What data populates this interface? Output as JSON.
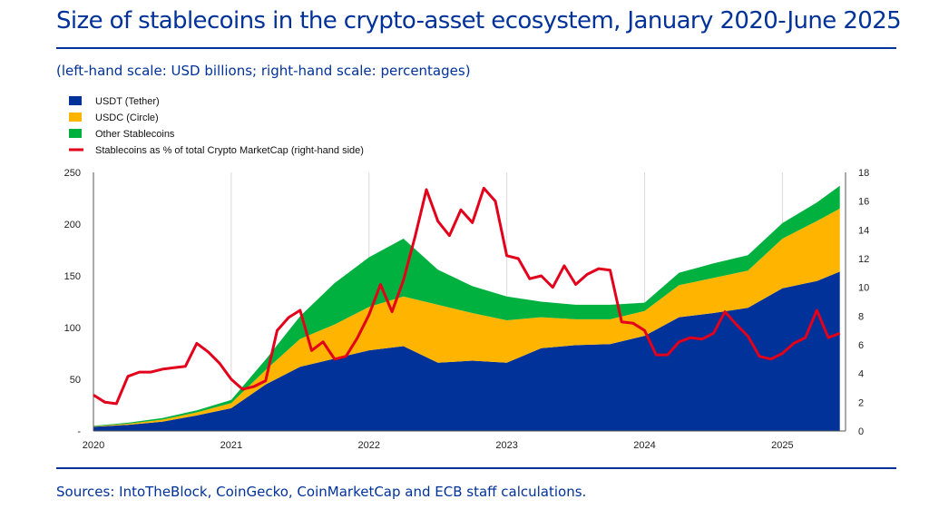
{
  "header": {
    "title": "Size of stablecoins in the crypto-asset ecosystem, January 2020-June 2025",
    "subtitle": "(left-hand scale: USD billions; right-hand scale: percentages)"
  },
  "footer": {
    "sources": "Sources: IntoTheBlock, CoinGecko, CoinMarketCap and ECB staff calculations."
  },
  "chart_data": {
    "type": "area",
    "title": "Size of stablecoins in the crypto-asset ecosystem, January 2020-June 2025",
    "x": [
      "2020-01",
      "2020-04",
      "2020-07",
      "2020-10",
      "2021-01",
      "2021-04",
      "2021-07",
      "2021-10",
      "2022-01",
      "2022-04",
      "2022-07",
      "2022-10",
      "2023-01",
      "2023-04",
      "2023-07",
      "2023-10",
      "2024-01",
      "2024-04",
      "2024-07",
      "2024-10",
      "2025-01",
      "2025-04",
      "2025-06"
    ],
    "x_ticks": [
      "2020",
      "2021",
      "2022",
      "2023",
      "2024",
      "2025"
    ],
    "ylim_left": [
      0,
      250
    ],
    "yticks_left": [
      "-",
      "50",
      "100",
      "150",
      "200",
      "250"
    ],
    "ylim_right": [
      0,
      18
    ],
    "yticks_right": [
      "0",
      "2",
      "4",
      "6",
      "8",
      "10",
      "12",
      "14",
      "16",
      "18"
    ],
    "stack_series": [
      {
        "name": "USDT (Tether)",
        "color": "#003299",
        "values": [
          4,
          6,
          9,
          15,
          22,
          45,
          62,
          70,
          78,
          82,
          66,
          68,
          66,
          80,
          83,
          84,
          92,
          110,
          114,
          119,
          138,
          145,
          154
        ]
      },
      {
        "name": "USDC (Circle)",
        "color": "#FFB400",
        "values": [
          0.5,
          1,
          2,
          3,
          5,
          14,
          27,
          33,
          42,
          48,
          56,
          46,
          41,
          30,
          25,
          24,
          24,
          31,
          34,
          36,
          48,
          58,
          61
        ]
      },
      {
        "name": "Other Stablecoins",
        "color": "#00B140",
        "values": [
          0.5,
          1,
          1.5,
          2,
          3,
          10,
          22,
          40,
          48,
          56,
          34,
          26,
          23,
          15,
          14,
          14,
          8,
          12,
          14,
          15,
          15,
          18,
          22
        ]
      }
    ],
    "line_series": {
      "name": "Stablecoins as % of total Crypto MarketCap (right-hand side)",
      "color": "#E3001B",
      "axis": "right",
      "x": [
        "2020-01",
        "2020-02",
        "2020-03",
        "2020-04",
        "2020-05",
        "2020-06",
        "2020-07",
        "2020-08",
        "2020-09",
        "2020-10",
        "2020-11",
        "2020-12",
        "2021-01",
        "2021-02",
        "2021-03",
        "2021-04",
        "2021-05",
        "2021-06",
        "2021-07",
        "2021-08",
        "2021-09",
        "2021-10",
        "2021-11",
        "2021-12",
        "2022-01",
        "2022-02",
        "2022-03",
        "2022-04",
        "2022-05",
        "2022-06",
        "2022-07",
        "2022-08",
        "2022-09",
        "2022-10",
        "2022-11",
        "2022-12",
        "2023-01",
        "2023-02",
        "2023-03",
        "2023-04",
        "2023-05",
        "2023-06",
        "2023-07",
        "2023-08",
        "2023-09",
        "2023-10",
        "2023-11",
        "2023-12",
        "2024-01",
        "2024-02",
        "2024-03",
        "2024-04",
        "2024-05",
        "2024-06",
        "2024-07",
        "2024-08",
        "2024-09",
        "2024-10",
        "2024-11",
        "2024-12",
        "2025-01",
        "2025-02",
        "2025-03",
        "2025-04",
        "2025-05",
        "2025-06"
      ],
      "values": [
        2.5,
        2.0,
        1.9,
        3.8,
        4.1,
        4.1,
        4.3,
        4.4,
        4.5,
        6.1,
        5.5,
        4.7,
        3.6,
        2.9,
        3.1,
        3.5,
        7.0,
        7.9,
        8.4,
        5.6,
        6.2,
        5.0,
        5.2,
        6.5,
        8.1,
        10.2,
        8.3,
        10.5,
        13.5,
        16.8,
        14.6,
        13.6,
        15.4,
        14.5,
        16.9,
        16.0,
        12.2,
        12.0,
        10.6,
        10.8,
        10.0,
        11.5,
        10.2,
        10.9,
        11.3,
        11.2,
        7.6,
        7.5,
        7.0,
        5.3,
        5.3,
        6.2,
        6.5,
        6.4,
        6.8,
        8.3,
        7.4,
        6.6,
        5.2,
        5.0,
        5.4,
        6.1,
        6.5,
        8.4,
        6.5,
        6.8
      ]
    },
    "legend_position": "top-left",
    "grid": "vertical-only"
  }
}
